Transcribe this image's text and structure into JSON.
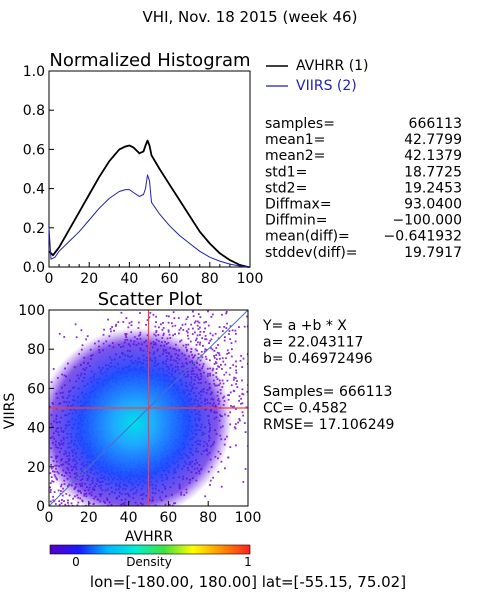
{
  "header": {
    "title": "VHI,  Nov. 18 2015 (week 46)",
    "footer": "lon=[-180.00, 180.00] lat=[-55.15, 75.02]"
  },
  "colors": {
    "avhrr": "#000000",
    "viirs": "#1f1fb4",
    "fit_line": "#4a6fc8",
    "mean_cross": "#ff3b3b",
    "scatter_sparse": "#8a2be2"
  },
  "chart_data": [
    {
      "type": "line",
      "title": "Normalized Histogram",
      "xlim": [
        0,
        100
      ],
      "ylim": [
        0,
        1.0
      ],
      "x_ticks": [
        "0",
        "20",
        "40",
        "60",
        "80",
        "100"
      ],
      "y_ticks": [
        "0.0",
        "0.2",
        "0.4",
        "0.6",
        "0.8",
        "1.0"
      ],
      "legend": [
        "AVHRR (1)",
        "VIIRS (2)"
      ],
      "legend_position": "right",
      "series": [
        {
          "name": "AVHRR (1)",
          "x": [
            0,
            2,
            5,
            10,
            15,
            20,
            25,
            30,
            35,
            38,
            40,
            42,
            45,
            47,
            48,
            49,
            50,
            51,
            55,
            60,
            65,
            70,
            75,
            80,
            85,
            90,
            95,
            99,
            100
          ],
          "y": [
            0.08,
            0.06,
            0.1,
            0.19,
            0.28,
            0.37,
            0.46,
            0.54,
            0.6,
            0.615,
            0.62,
            0.61,
            0.58,
            0.59,
            0.62,
            0.645,
            0.62,
            0.57,
            0.5,
            0.42,
            0.34,
            0.26,
            0.18,
            0.12,
            0.07,
            0.035,
            0.01,
            0.0,
            0.0
          ]
        },
        {
          "name": "VIIRS (2)",
          "x": [
            0,
            1,
            3,
            5,
            10,
            15,
            20,
            25,
            30,
            35,
            38,
            40,
            42,
            45,
            47,
            48,
            49,
            50,
            51,
            55,
            60,
            65,
            70,
            75,
            80,
            85,
            90,
            95,
            99,
            100
          ],
          "y": [
            0.2,
            0.04,
            0.05,
            0.08,
            0.13,
            0.18,
            0.24,
            0.3,
            0.35,
            0.385,
            0.395,
            0.395,
            0.38,
            0.36,
            0.37,
            0.4,
            0.47,
            0.44,
            0.33,
            0.27,
            0.21,
            0.16,
            0.12,
            0.08,
            0.05,
            0.03,
            0.015,
            0.005,
            0.0,
            0.0
          ]
        }
      ],
      "stats": [
        {
          "label": "samples=",
          "value": "666113"
        },
        {
          "label": "mean1=",
          "value": "42.7799"
        },
        {
          "label": "mean2=",
          "value": "42.1379"
        },
        {
          "label": "std1=",
          "value": "18.7725"
        },
        {
          "label": "std2=",
          "value": "19.2453"
        },
        {
          "label": "Diffmax=",
          "value": "93.0400"
        },
        {
          "label": "Diffmin=",
          "value": "−100.000"
        },
        {
          "label": "mean(diff)=",
          "value": "−0.641932"
        },
        {
          "label": "stddev(diff)=",
          "value": "19.7917"
        }
      ]
    },
    {
      "type": "scatter",
      "title": "Scatter Plot",
      "xlabel": "AVHRR",
      "ylabel": "VIIRS",
      "xlim": [
        0,
        100
      ],
      "ylim": [
        0,
        100
      ],
      "x_ticks": [
        "0",
        "20",
        "40",
        "60",
        "80",
        "100"
      ],
      "y_ticks": [
        "0",
        "20",
        "40",
        "60",
        "80",
        "100"
      ],
      "density_center": [
        42.8,
        42.1
      ],
      "mean_cross": [
        50,
        50
      ],
      "fit": {
        "intercept": 22.043117,
        "slope": 0.46972496
      },
      "stats_lines": [
        "Y= a +b * X",
        "a= 22.043117",
        "b= 0.46972496",
        "",
        "Samples= 666113",
        "CC=  0.4582",
        "RMSE= 17.106249"
      ],
      "colorbar": {
        "label": "Density",
        "min_label": "0",
        "max_label": "1",
        "stops": [
          "#5a00c8",
          "#1a1aff",
          "#00b4ff",
          "#00f0d0",
          "#40e040",
          "#ffff00",
          "#ff9000",
          "#ff2020"
        ]
      }
    }
  ]
}
